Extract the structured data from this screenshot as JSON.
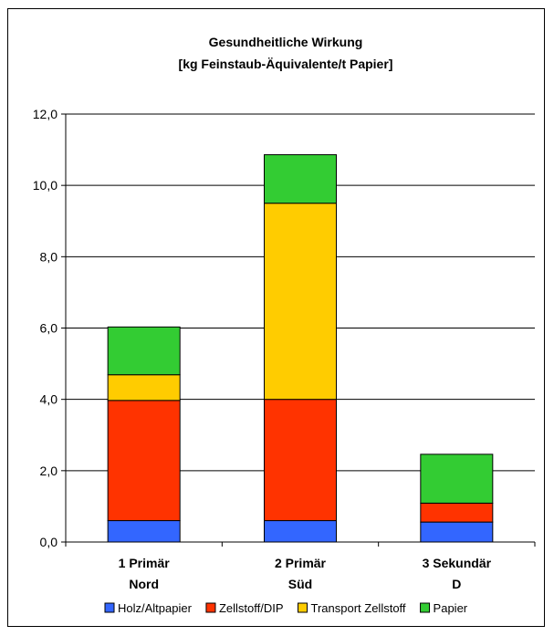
{
  "chart_data": {
    "type": "bar",
    "stacked": true,
    "title_line1": "Gesundheitliche Wirkung",
    "title_line2": "[kg Feinstaub-Äquivalente/t Papier]",
    "categories": [
      {
        "line1": "1 Primär",
        "line2": "Nord"
      },
      {
        "line1": "2 Primär",
        "line2": "Süd"
      },
      {
        "line1": "3 Sekundär",
        "line2": "D"
      }
    ],
    "ylim": [
      0,
      12
    ],
    "yticks": [
      "0,0",
      "2,0",
      "4,0",
      "6,0",
      "8,0",
      "10,0",
      "12,0"
    ],
    "grid": true,
    "legend_position": "bottom",
    "series": [
      {
        "name": "Holz/Altpapier",
        "color": "#3366FF",
        "values": [
          0.6,
          0.6,
          0.56
        ]
      },
      {
        "name": "Zellstoff/DIP",
        "color": "#FF3300",
        "values": [
          3.37,
          3.4,
          0.53
        ]
      },
      {
        "name": "Transport Zellstoff",
        "color": "#FFCC00",
        "values": [
          0.72,
          5.5,
          0
        ]
      },
      {
        "name": "Papier",
        "color": "#33CC33",
        "values": [
          1.34,
          1.36,
          1.37
        ]
      }
    ]
  }
}
